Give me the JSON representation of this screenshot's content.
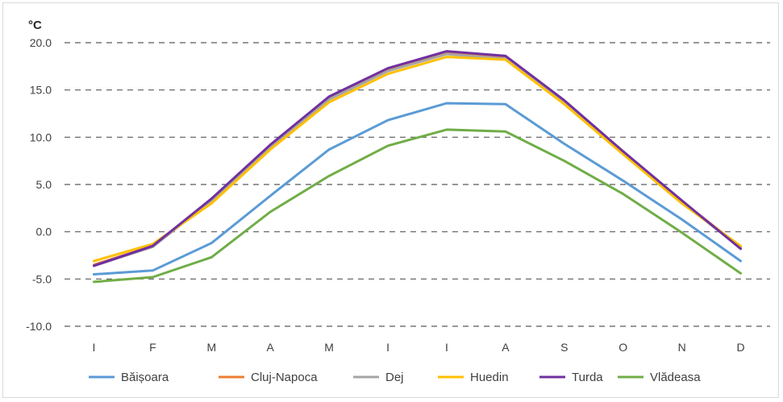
{
  "chart_data": {
    "type": "line",
    "unit_label": "°C",
    "categories": [
      "I",
      "F",
      "M",
      "A",
      "M",
      "I",
      "I",
      "A",
      "S",
      "O",
      "N",
      "D"
    ],
    "ylim": [
      -10,
      20
    ],
    "yticks": [
      "20.0",
      "15.0",
      "10.0",
      "5.0",
      "0.0",
      "-5.0",
      "-10.0"
    ],
    "grid": "horizontal-dashed",
    "legend_position": "bottom",
    "series": [
      {
        "name": "Băișoara",
        "color": "#5b9bd5",
        "values": [
          -4.5,
          -4.1,
          -1.2,
          3.8,
          8.7,
          11.8,
          13.6,
          13.5,
          9.3,
          5.4,
          1.3,
          -3.1
        ]
      },
      {
        "name": "Cluj-Napoca",
        "color": "#ed7d31",
        "values": [
          -3.5,
          -1.5,
          3.4,
          9.1,
          14.1,
          17.1,
          18.9,
          18.4,
          13.8,
          8.5,
          3.2,
          -1.6
        ]
      },
      {
        "name": "Dej",
        "color": "#a5a5a5",
        "values": [
          -3.6,
          -1.6,
          3.3,
          9.0,
          14.0,
          17.0,
          18.8,
          18.3,
          13.7,
          8.4,
          3.1,
          -1.7
        ]
      },
      {
        "name": "Huedin",
        "color": "#ffc000",
        "values": [
          -3.1,
          -1.3,
          3.0,
          8.7,
          13.7,
          16.7,
          18.5,
          18.2,
          13.5,
          8.2,
          3.0,
          -1.5
        ]
      },
      {
        "name": "Turda",
        "color": "#7030a0",
        "values": [
          -3.6,
          -1.5,
          3.5,
          9.2,
          14.3,
          17.3,
          19.1,
          18.6,
          13.9,
          8.5,
          3.3,
          -1.8
        ]
      },
      {
        "name": "Vlădeasa",
        "color": "#70ad47",
        "values": [
          -5.3,
          -4.8,
          -2.7,
          2.1,
          5.9,
          9.1,
          10.8,
          10.6,
          7.5,
          4.0,
          -0.1,
          -4.4
        ]
      }
    ]
  }
}
